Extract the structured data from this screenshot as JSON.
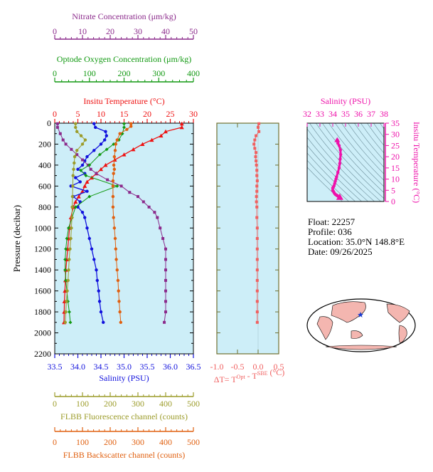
{
  "colors": {
    "nitrate": "#8b2a8b",
    "oxygen": "#119911",
    "temperature": "#ee1111",
    "salinity": "#1111dd",
    "fluorescence": "#9c9c2a",
    "backscatter": "#e06010",
    "deltaT": "#f06060",
    "ts": "#ee11aa",
    "plot_bg": "#cdeef8",
    "frame": "#707030"
  },
  "float_info": {
    "float": "Float:  22257",
    "profile": "Profile:  036",
    "location": "Location:  35.0°N  148.8°E",
    "date": "Date:  09/26/2025"
  },
  "chart_data": [
    {
      "type": "line",
      "panel": "main-profile",
      "ylabel": "Pressure (decibar)",
      "ylim": [
        0,
        2200
      ],
      "y_inverted": true,
      "yticks": [
        0,
        200,
        400,
        600,
        800,
        1000,
        1200,
        1400,
        1600,
        1800,
        2000,
        2200
      ],
      "axes": {
        "nitrate": {
          "label": "Nitrate Concentration (μm/kg)",
          "range": [
            0,
            50
          ],
          "ticks": [
            0,
            10,
            20,
            30,
            40,
            50
          ],
          "position": "top-1"
        },
        "oxygen": {
          "label": "Optode Oxygen Concentration (μm/kg)",
          "range": [
            0,
            400
          ],
          "ticks": [
            0,
            100,
            200,
            300,
            400
          ],
          "position": "top-2"
        },
        "temperature": {
          "label": "Insitu Temperature (°C)",
          "range": [
            0,
            30
          ],
          "ticks": [
            0,
            5,
            10,
            15,
            20,
            25,
            30
          ],
          "position": "top-3"
        },
        "salinity": {
          "label": "Salinity (PSU)",
          "range": [
            33.5,
            36.5
          ],
          "ticks": [
            "33.5",
            "34.0",
            "34.5",
            "35.0",
            "35.5",
            "36.0",
            "36.5"
          ],
          "position": "bottom-1"
        },
        "fluorescence": {
          "label": "FLBB Fluorescence channel (counts)",
          "range": [
            0,
            500
          ],
          "ticks": [
            0,
            100,
            200,
            300,
            400,
            500
          ],
          "position": "bottom-2"
        },
        "backscatter": {
          "label": "FLBB Backscatter channel (counts)",
          "range": [
            0,
            500
          ],
          "ticks": [
            0,
            100,
            200,
            300,
            400,
            500
          ],
          "position": "bottom-3"
        }
      },
      "series": [
        {
          "key": "temperature",
          "marker": "triangle",
          "points": [
            [
              27.5,
              5
            ],
            [
              27.5,
              40
            ],
            [
              24,
              80
            ],
            [
              23,
              120
            ],
            [
              21,
              160
            ],
            [
              19,
              200
            ],
            [
              17,
              250
            ],
            [
              15,
              300
            ],
            [
              13,
              350
            ],
            [
              11,
              400
            ],
            [
              10,
              440
            ],
            [
              9,
              480
            ],
            [
              8,
              520
            ],
            [
              7,
              560
            ],
            [
              6.5,
              600
            ],
            [
              6,
              650
            ],
            [
              5.2,
              700
            ],
            [
              4.5,
              750
            ],
            [
              4,
              800
            ],
            [
              3.5,
              900
            ],
            [
              3.2,
              1000
            ],
            [
              3,
              1100
            ],
            [
              2.8,
              1200
            ],
            [
              2.6,
              1300
            ],
            [
              2.4,
              1400
            ],
            [
              2.3,
              1500
            ],
            [
              2.2,
              1600
            ],
            [
              2.1,
              1700
            ],
            [
              2.05,
              1800
            ],
            [
              2,
              1900
            ]
          ]
        },
        {
          "key": "salinity",
          "marker": "circle",
          "points": [
            [
              34.35,
              5
            ],
            [
              34.38,
              40
            ],
            [
              34.6,
              80
            ],
            [
              34.62,
              120
            ],
            [
              34.58,
              160
            ],
            [
              34.5,
              200
            ],
            [
              34.35,
              260
            ],
            [
              34.2,
              320
            ],
            [
              34.15,
              360
            ],
            [
              34.1,
              400
            ],
            [
              34.0,
              440
            ],
            [
              34.15,
              480
            ],
            [
              33.95,
              520
            ],
            [
              34.05,
              560
            ],
            [
              33.85,
              600
            ],
            [
              34.2,
              650
            ],
            [
              33.9,
              700
            ],
            [
              34.05,
              750
            ],
            [
              34.0,
              800
            ],
            [
              34.1,
              850
            ],
            [
              34.15,
              900
            ],
            [
              34.2,
              1000
            ],
            [
              34.25,
              1100
            ],
            [
              34.3,
              1200
            ],
            [
              34.35,
              1300
            ],
            [
              34.4,
              1400
            ],
            [
              34.42,
              1500
            ],
            [
              34.45,
              1600
            ],
            [
              34.47,
              1700
            ],
            [
              34.5,
              1800
            ],
            [
              34.55,
              1900
            ]
          ]
        },
        {
          "key": "nitrate",
          "marker": "square",
          "points": [
            [
              1,
              5
            ],
            [
              1,
              40
            ],
            [
              2,
              100
            ],
            [
              3,
              160
            ],
            [
              4,
              200
            ],
            [
              6,
              250
            ],
            [
              8,
              300
            ],
            [
              10,
              350
            ],
            [
              12,
              400
            ],
            [
              13,
              440
            ],
            [
              15,
              480
            ],
            [
              19,
              540
            ],
            [
              24,
              600
            ],
            [
              27,
              660
            ],
            [
              30,
              700
            ],
            [
              32,
              750
            ],
            [
              34,
              800
            ],
            [
              36,
              850
            ],
            [
              37,
              900
            ],
            [
              38,
              1000
            ],
            [
              39,
              1100
            ],
            [
              40,
              1200
            ],
            [
              40,
              1300
            ],
            [
              40,
              1400
            ],
            [
              40,
              1500
            ],
            [
              40,
              1600
            ],
            [
              40,
              1700
            ],
            [
              40,
              1800
            ],
            [
              39.5,
              1900
            ]
          ]
        },
        {
          "key": "oxygen",
          "marker": "diamond",
          "points": [
            [
              200,
              5
            ],
            [
              200,
              40
            ],
            [
              195,
              100
            ],
            [
              185,
              160
            ],
            [
              170,
              200
            ],
            [
              150,
              250
            ],
            [
              130,
              300
            ],
            [
              100,
              400
            ],
            [
              75,
              450
            ],
            [
              90,
              500
            ],
            [
              180,
              600
            ],
            [
              100,
              700
            ],
            [
              60,
              800
            ],
            [
              50,
              900
            ],
            [
              40,
              1000
            ],
            [
              35,
              1100
            ],
            [
              32,
              1200
            ],
            [
              30,
              1300
            ],
            [
              30,
              1400
            ],
            [
              32,
              1500
            ],
            [
              35,
              1600
            ],
            [
              38,
              1700
            ],
            [
              42,
              1800
            ],
            [
              45,
              1900
            ]
          ]
        },
        {
          "key": "fluorescence",
          "marker": "circle",
          "points": [
            [
              75,
              5
            ],
            [
              75,
              40
            ],
            [
              80,
              80
            ],
            [
              95,
              120
            ],
            [
              110,
              160
            ],
            [
              100,
              200
            ],
            [
              80,
              260
            ],
            [
              72,
              320
            ],
            [
              70,
              380
            ],
            [
              68,
              440
            ],
            [
              66,
              500
            ],
            [
              65,
              600
            ],
            [
              64,
              700
            ],
            [
              63,
              800
            ],
            [
              62,
              900
            ],
            [
              60,
              1000
            ],
            [
              58,
              1100
            ],
            [
              55,
              1200
            ],
            [
              52,
              1300
            ],
            [
              50,
              1400
            ],
            [
              48,
              1500
            ],
            [
              45,
              1600
            ],
            [
              42,
              1700
            ],
            [
              40,
              1800
            ],
            [
              38,
              1900
            ]
          ]
        },
        {
          "key": "backscatter",
          "marker": "circle",
          "points": [
            [
              275,
              5
            ],
            [
              275,
              30
            ],
            [
              260,
              60
            ],
            [
              235,
              100
            ],
            [
              225,
              160
            ],
            [
              220,
              200
            ],
            [
              218,
              260
            ],
            [
              215,
              320
            ],
            [
              213,
              400
            ],
            [
              215,
              440
            ],
            [
              212,
              480
            ],
            [
              210,
              550
            ],
            [
              210,
              600
            ],
            [
              210,
              700
            ],
            [
              210,
              800
            ],
            [
              212,
              900
            ],
            [
              215,
              1000
            ],
            [
              218,
              1100
            ],
            [
              220,
              1200
            ],
            [
              222,
              1300
            ],
            [
              225,
              1400
            ],
            [
              228,
              1500
            ],
            [
              230,
              1600
            ],
            [
              232,
              1700
            ],
            [
              235,
              1800
            ],
            [
              238,
              1900
            ]
          ]
        }
      ]
    },
    {
      "type": "line",
      "panel": "delta-t",
      "xlabel": "ΔT= T^Opt - T^SBE (°C)",
      "xlim": [
        -1.0,
        0.5
      ],
      "xticks": [
        "-1.0",
        "-0.5",
        "0.0",
        "0.5"
      ],
      "ylim": [
        0,
        2200
      ],
      "points": [
        [
          0.02,
          5
        ],
        [
          0.0,
          40
        ],
        [
          0.02,
          80
        ],
        [
          -0.05,
          120
        ],
        [
          -0.08,
          160
        ],
        [
          -0.1,
          200
        ],
        [
          -0.08,
          240
        ],
        [
          -0.05,
          280
        ],
        [
          -0.06,
          320
        ],
        [
          -0.05,
          360
        ],
        [
          -0.04,
          400
        ],
        [
          -0.03,
          450
        ],
        [
          -0.03,
          500
        ],
        [
          -0.02,
          550
        ],
        [
          -0.03,
          600
        ],
        [
          -0.03,
          650
        ],
        [
          -0.04,
          700
        ],
        [
          -0.04,
          750
        ],
        [
          -0.03,
          800
        ],
        [
          -0.03,
          900
        ],
        [
          -0.02,
          1000
        ],
        [
          -0.02,
          1100
        ],
        [
          -0.02,
          1200
        ],
        [
          -0.02,
          1300
        ],
        [
          -0.02,
          1400
        ],
        [
          -0.02,
          1500
        ],
        [
          -0.02,
          1600
        ],
        [
          -0.02,
          1700
        ],
        [
          -0.02,
          1800
        ],
        [
          -0.02,
          1900
        ]
      ]
    },
    {
      "type": "scatter",
      "panel": "ts-diagram",
      "xlabel": "Salinity (PSU)",
      "ylabel": "Insitu Temperature (°C)",
      "xlim": [
        32,
        38
      ],
      "xticks": [
        32,
        33,
        34,
        35,
        36,
        37,
        38
      ],
      "ylim": [
        0,
        35
      ],
      "yticks": [
        0,
        5,
        10,
        15,
        20,
        25,
        30,
        35
      ],
      "points": [
        [
          34.35,
          27.5
        ],
        [
          34.4,
          26
        ],
        [
          34.5,
          25
        ],
        [
          34.6,
          23
        ],
        [
          34.62,
          21
        ],
        [
          34.58,
          19
        ],
        [
          34.55,
          17
        ],
        [
          34.5,
          15
        ],
        [
          34.4,
          13
        ],
        [
          34.3,
          11
        ],
        [
          34.25,
          10
        ],
        [
          34.2,
          9
        ],
        [
          34.15,
          8
        ],
        [
          34.1,
          7
        ],
        [
          34.05,
          6.5
        ],
        [
          34.0,
          6
        ],
        [
          34.0,
          5
        ],
        [
          34.05,
          4.5
        ],
        [
          34.1,
          4
        ],
        [
          34.15,
          3.5
        ],
        [
          34.2,
          3.2
        ],
        [
          34.25,
          3
        ],
        [
          34.3,
          2.8
        ],
        [
          34.35,
          2.6
        ],
        [
          34.4,
          2.4
        ],
        [
          34.45,
          2.2
        ],
        [
          34.5,
          2.1
        ],
        [
          34.55,
          2
        ]
      ]
    }
  ]
}
